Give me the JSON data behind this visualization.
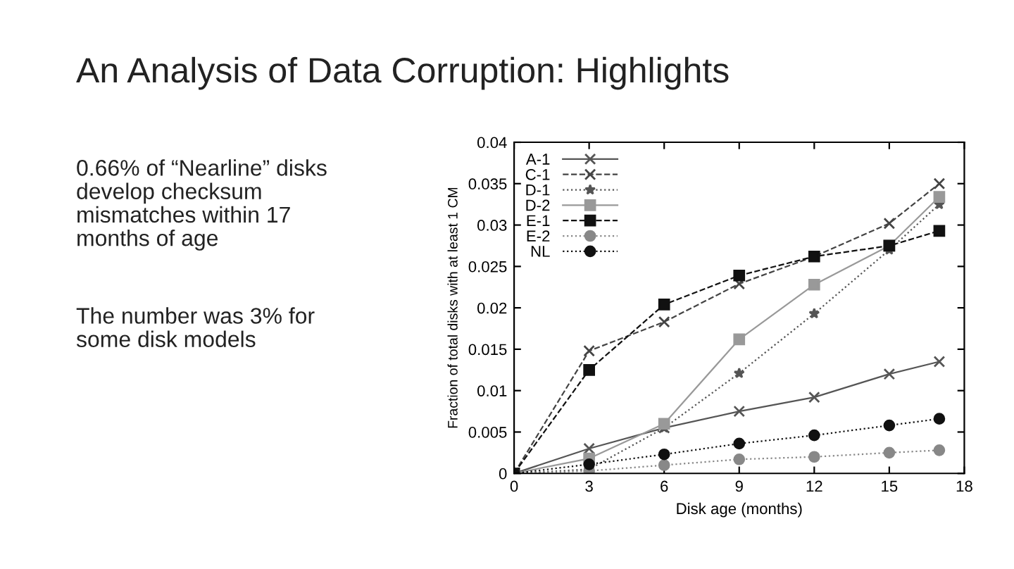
{
  "chart_data": {
    "type": "line",
    "xlabel": "Disk age (months)",
    "ylabel": "Fraction of total disks with at least 1 CM",
    "annotations": [
      "An Analysis of Data Corruption: Highlights",
      "0.66% of “Nearline” disks\ndevelop checksum\nmismatches within 17\nmonths of age",
      "The number was 3% for\nsome disk models"
    ],
    "x": [
      0,
      3,
      6,
      9,
      12,
      15,
      17
    ],
    "xlim": [
      0,
      18
    ],
    "xticks": [
      0,
      3,
      6,
      9,
      12,
      15,
      18
    ],
    "ylim": [
      0,
      0.04
    ],
    "yticks": [
      0,
      0.005,
      0.01,
      0.015,
      0.02,
      0.025,
      0.03,
      0.035,
      0.04
    ],
    "grid": false,
    "legend": "top left",
    "series": [
      {
        "name": "A-1",
        "color": "#555555",
        "marker": "cross",
        "line_style": "solid",
        "values": [
          0,
          0.003,
          0.0055,
          0.0075,
          0.0092,
          0.012,
          0.0135
        ]
      },
      {
        "name": "C-1",
        "color": "#444444",
        "marker": "cross",
        "line_style": "dashed",
        "values": [
          0,
          0.0148,
          0.0183,
          0.0229,
          0.0262,
          0.0302,
          0.035
        ]
      },
      {
        "name": "D-1",
        "color": "#555555",
        "marker": "star",
        "line_style": "dotted",
        "values": [
          0,
          0.0005,
          0.0055,
          0.0121,
          0.0193,
          0.027,
          0.0325
        ]
      },
      {
        "name": "D-2",
        "color": "#999999",
        "marker": "square",
        "line_style": "solid",
        "values": [
          0,
          0.0018,
          0.006,
          0.0162,
          0.0228,
          0.0275,
          0.0334
        ]
      },
      {
        "name": "E-1",
        "color": "#111111",
        "marker": "square",
        "line_style": "dashed",
        "values": [
          0,
          0.0125,
          0.0204,
          0.0239,
          0.0262,
          0.0275,
          0.0293
        ]
      },
      {
        "name": "E-2",
        "color": "#888888",
        "marker": "circle",
        "line_style": "dotted",
        "values": [
          0,
          0.0003,
          0.001,
          0.0017,
          0.002,
          0.0025,
          0.0028
        ]
      },
      {
        "name": "NL",
        "color": "#111111",
        "marker": "circle",
        "line_style": "dotted",
        "values": [
          0,
          0.0011,
          0.0023,
          0.0036,
          0.0046,
          0.0058,
          0.0066
        ]
      }
    ]
  }
}
